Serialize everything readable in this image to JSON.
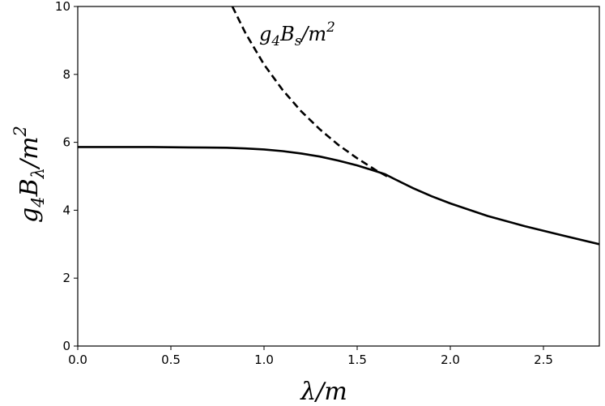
{
  "chart_data": {
    "type": "line",
    "xlabel": {
      "main": "λ/m"
    },
    "ylabel": {
      "base1": "g",
      "sub1": "4",
      "base2": "B",
      "sub2": "λ",
      "tail": "/m",
      "sup": "2"
    },
    "xlim": [
      0,
      2.8
    ],
    "ylim": [
      0,
      10
    ],
    "xticks": [
      0.0,
      0.5,
      1.0,
      1.5,
      2.0,
      2.5
    ],
    "xtick_labels": [
      "0.0",
      "0.5",
      "1.0",
      "1.5",
      "2.0",
      "2.5"
    ],
    "yticks": [
      0,
      2,
      4,
      6,
      8,
      10
    ],
    "ytick_labels": [
      "0",
      "2",
      "4",
      "6",
      "8",
      "10"
    ],
    "grid": false,
    "annotation": {
      "base1": "g",
      "sub1": "4",
      "base2": "B",
      "sub2": "s",
      "tail": "/m",
      "sup": "2"
    },
    "series": [
      {
        "style": "solid",
        "color": "#000000",
        "x": [
          0.0,
          0.2,
          0.4,
          0.6,
          0.8,
          0.9,
          1.0,
          1.1,
          1.2,
          1.3,
          1.4,
          1.5,
          1.6,
          1.65,
          1.7,
          1.8,
          1.9,
          2.0,
          2.2,
          2.4,
          2.6,
          2.8
        ],
        "y": [
          5.86,
          5.86,
          5.86,
          5.85,
          5.84,
          5.82,
          5.79,
          5.74,
          5.67,
          5.58,
          5.46,
          5.32,
          5.15,
          5.06,
          4.92,
          4.65,
          4.41,
          4.2,
          3.83,
          3.53,
          3.26,
          3.0
        ]
      },
      {
        "style": "dashed",
        "color": "#000000",
        "x": [
          0.83,
          0.9,
          1.0,
          1.1,
          1.2,
          1.3,
          1.4,
          1.5,
          1.6,
          1.67
        ],
        "y": [
          10.0,
          9.22,
          8.29,
          7.54,
          6.91,
          6.38,
          5.92,
          5.53,
          5.18,
          4.97
        ]
      }
    ]
  }
}
